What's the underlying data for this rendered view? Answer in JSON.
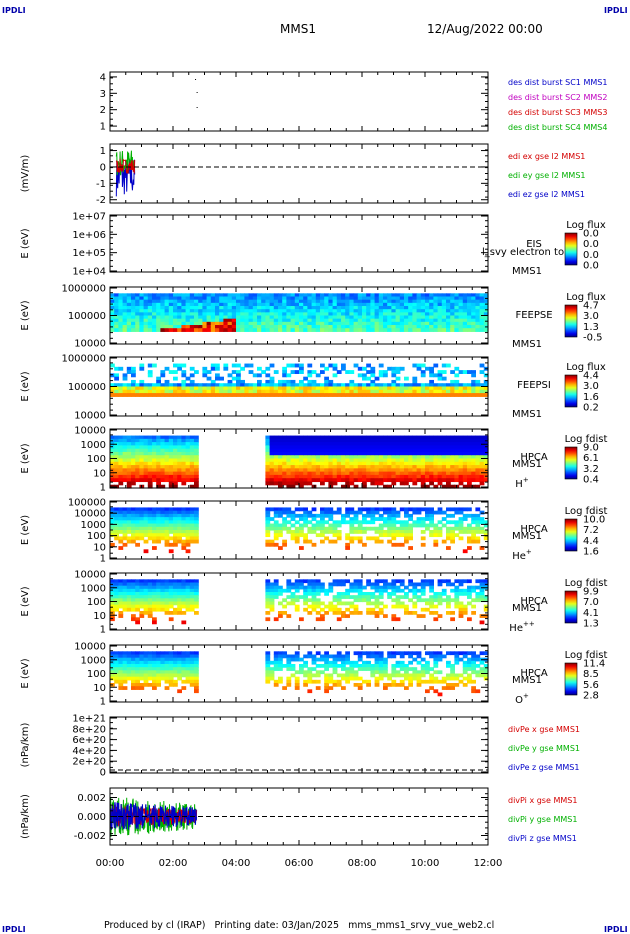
{
  "corners": {
    "tl": "IPDLI",
    "tr": "IPDLI",
    "bl": "IPDLI",
    "br": "IPDLI"
  },
  "header": {
    "spacecraft": "MMS1",
    "date": "12/Aug/2022 00:00"
  },
  "footer": {
    "text": "Produced by cl (IRAP)   Printing date: 03/Jan/2025   mms_mms1_srvy_vue_web2.cl"
  },
  "colors": {
    "red": "#d40000",
    "green": "#00b000",
    "blue": "#0000c8",
    "magenta": "#c000c0",
    "axis": "#000000"
  },
  "chart_data": {
    "type": "multi-panel",
    "x_range_hours": [
      0,
      12
    ],
    "x_ticks": [
      "00:00",
      "02:00",
      "04:00",
      "06:00",
      "08:00",
      "10:00",
      "12:00"
    ],
    "panels": [
      {
        "id": "p1",
        "type": "line",
        "ylabel": "",
        "yticks": [
          "1",
          "2",
          "3",
          "4"
        ],
        "ylim": [
          0.7,
          4.3
        ],
        "legend": [
          {
            "label": "des dist burst SC1 MMS1",
            "color": "#0000c8"
          },
          {
            "label": "des dist burst SC2 MMS2",
            "color": "#c000c0"
          },
          {
            "label": "des dist burst SC3 MMS3",
            "color": "#d40000"
          },
          {
            "label": "des dist burst SC4 MMS4",
            "color": "#00b000"
          }
        ]
      },
      {
        "id": "p2",
        "type": "line",
        "ylabel": "(mV/m)",
        "yticks": [
          "-2",
          "-1",
          "0",
          "1"
        ],
        "ylim": [
          -2.2,
          1.4
        ],
        "zero_line": true,
        "legend": [
          {
            "label": "edi ex gse l2 MMS1",
            "color": "#d40000"
          },
          {
            "label": "edi ey gse l2 MMS1",
            "color": "#00b000"
          },
          {
            "label": "edi ez gse l2 MMS1",
            "color": "#0000c8"
          }
        ]
      },
      {
        "id": "p3",
        "type": "heatmap",
        "ylabel": "E (eV)",
        "yticks": [
          "1e+04",
          "1e+05",
          "1e+06",
          "1e+07"
        ],
        "side_labels": [
          "EIS",
          "MMS1"
        ],
        "overlay_text": "l_svy electron to",
        "cbar": {
          "title": "Log flux",
          "ticks": [
            "0.0",
            "0.0",
            "0.0",
            "0.0"
          ]
        }
      },
      {
        "id": "p4",
        "type": "heatmap",
        "ylabel": "E (eV)",
        "yticks": [
          "10000",
          "100000",
          "1000000"
        ],
        "side_labels": [
          "FEEPSE",
          "MMS1"
        ],
        "cbar": {
          "title": "Log flux",
          "ticks": [
            "4.7",
            "3.0",
            "1.3",
            "-0.5"
          ]
        }
      },
      {
        "id": "p5",
        "type": "heatmap",
        "ylabel": "E (eV)",
        "yticks": [
          "10000",
          "100000",
          "1000000"
        ],
        "side_labels": [
          "FEEPSI",
          "MMS1"
        ],
        "cbar": {
          "title": "Log flux",
          "ticks": [
            "4.4",
            "3.0",
            "1.6",
            "0.2"
          ]
        }
      },
      {
        "id": "p6",
        "type": "heatmap",
        "ylabel": "E (eV)",
        "yticks": [
          "1",
          "10",
          "100",
          "1000",
          "10000"
        ],
        "side_labels": [
          "HPCA",
          "MMS1"
        ],
        "species": "H",
        "species_sup": "+",
        "cbar": {
          "title": "Log fdist",
          "ticks": [
            "9.0",
            "6.1",
            "3.2",
            "0.4"
          ]
        },
        "gap_hours": [
          2.75,
          5.0
        ]
      },
      {
        "id": "p7",
        "type": "heatmap",
        "ylabel": "E (eV)",
        "yticks": [
          "1",
          "10",
          "100",
          "1000",
          "10000",
          "100000"
        ],
        "side_labels": [
          "HPCA",
          "MMS1"
        ],
        "species": "He",
        "species_sup": "+",
        "cbar": {
          "title": "Log fdist",
          "ticks": [
            "10.0",
            "7.2",
            "4.4",
            "1.6"
          ]
        },
        "gap_hours": [
          2.75,
          5.0
        ]
      },
      {
        "id": "p8",
        "type": "heatmap",
        "ylabel": "E (eV)",
        "yticks": [
          "1",
          "10",
          "100",
          "1000",
          "10000"
        ],
        "side_labels": [
          "HPCA",
          "MMS1"
        ],
        "species": "He",
        "species_sup": "++",
        "cbar": {
          "title": "Log fdist",
          "ticks": [
            "9.9",
            "7.0",
            "4.1",
            "1.3"
          ]
        },
        "gap_hours": [
          2.75,
          5.0
        ]
      },
      {
        "id": "p9",
        "type": "heatmap",
        "ylabel": "E (eV)",
        "yticks": [
          "1",
          "10",
          "100",
          "1000",
          "10000"
        ],
        "side_labels": [
          "HPCA",
          "MMS1"
        ],
        "species": "O",
        "species_sup": "+",
        "cbar": {
          "title": "Log fdist",
          "ticks": [
            "11.4",
            "8.5",
            "5.6",
            "2.8"
          ]
        },
        "gap_hours": [
          2.75,
          5.0
        ]
      },
      {
        "id": "p10",
        "type": "line",
        "ylabel": "(nPa/km)",
        "yticks": [
          "0",
          "2e+20",
          "4e+20",
          "6e+20",
          "8e+20",
          "1e+21"
        ],
        "zero_line": true,
        "legend": [
          {
            "label": "divPe x gse MMS1",
            "color": "#d40000"
          },
          {
            "label": "divPe y gse MMS1",
            "color": "#00b000"
          },
          {
            "label": "divPe z gse MMS1",
            "color": "#0000c8"
          }
        ]
      },
      {
        "id": "p11",
        "type": "line",
        "ylabel": "(nPa/km)",
        "yticks": [
          "-0.002",
          "0.000",
          "0.002"
        ],
        "ylim": [
          -0.003,
          0.003
        ],
        "zero_line": true,
        "legend": [
          {
            "label": "divPi x gse MMS1",
            "color": "#d40000"
          },
          {
            "label": "divPi y gse MMS1",
            "color": "#00b000"
          },
          {
            "label": "divPi z gse MMS1",
            "color": "#0000c8"
          }
        ]
      }
    ]
  }
}
